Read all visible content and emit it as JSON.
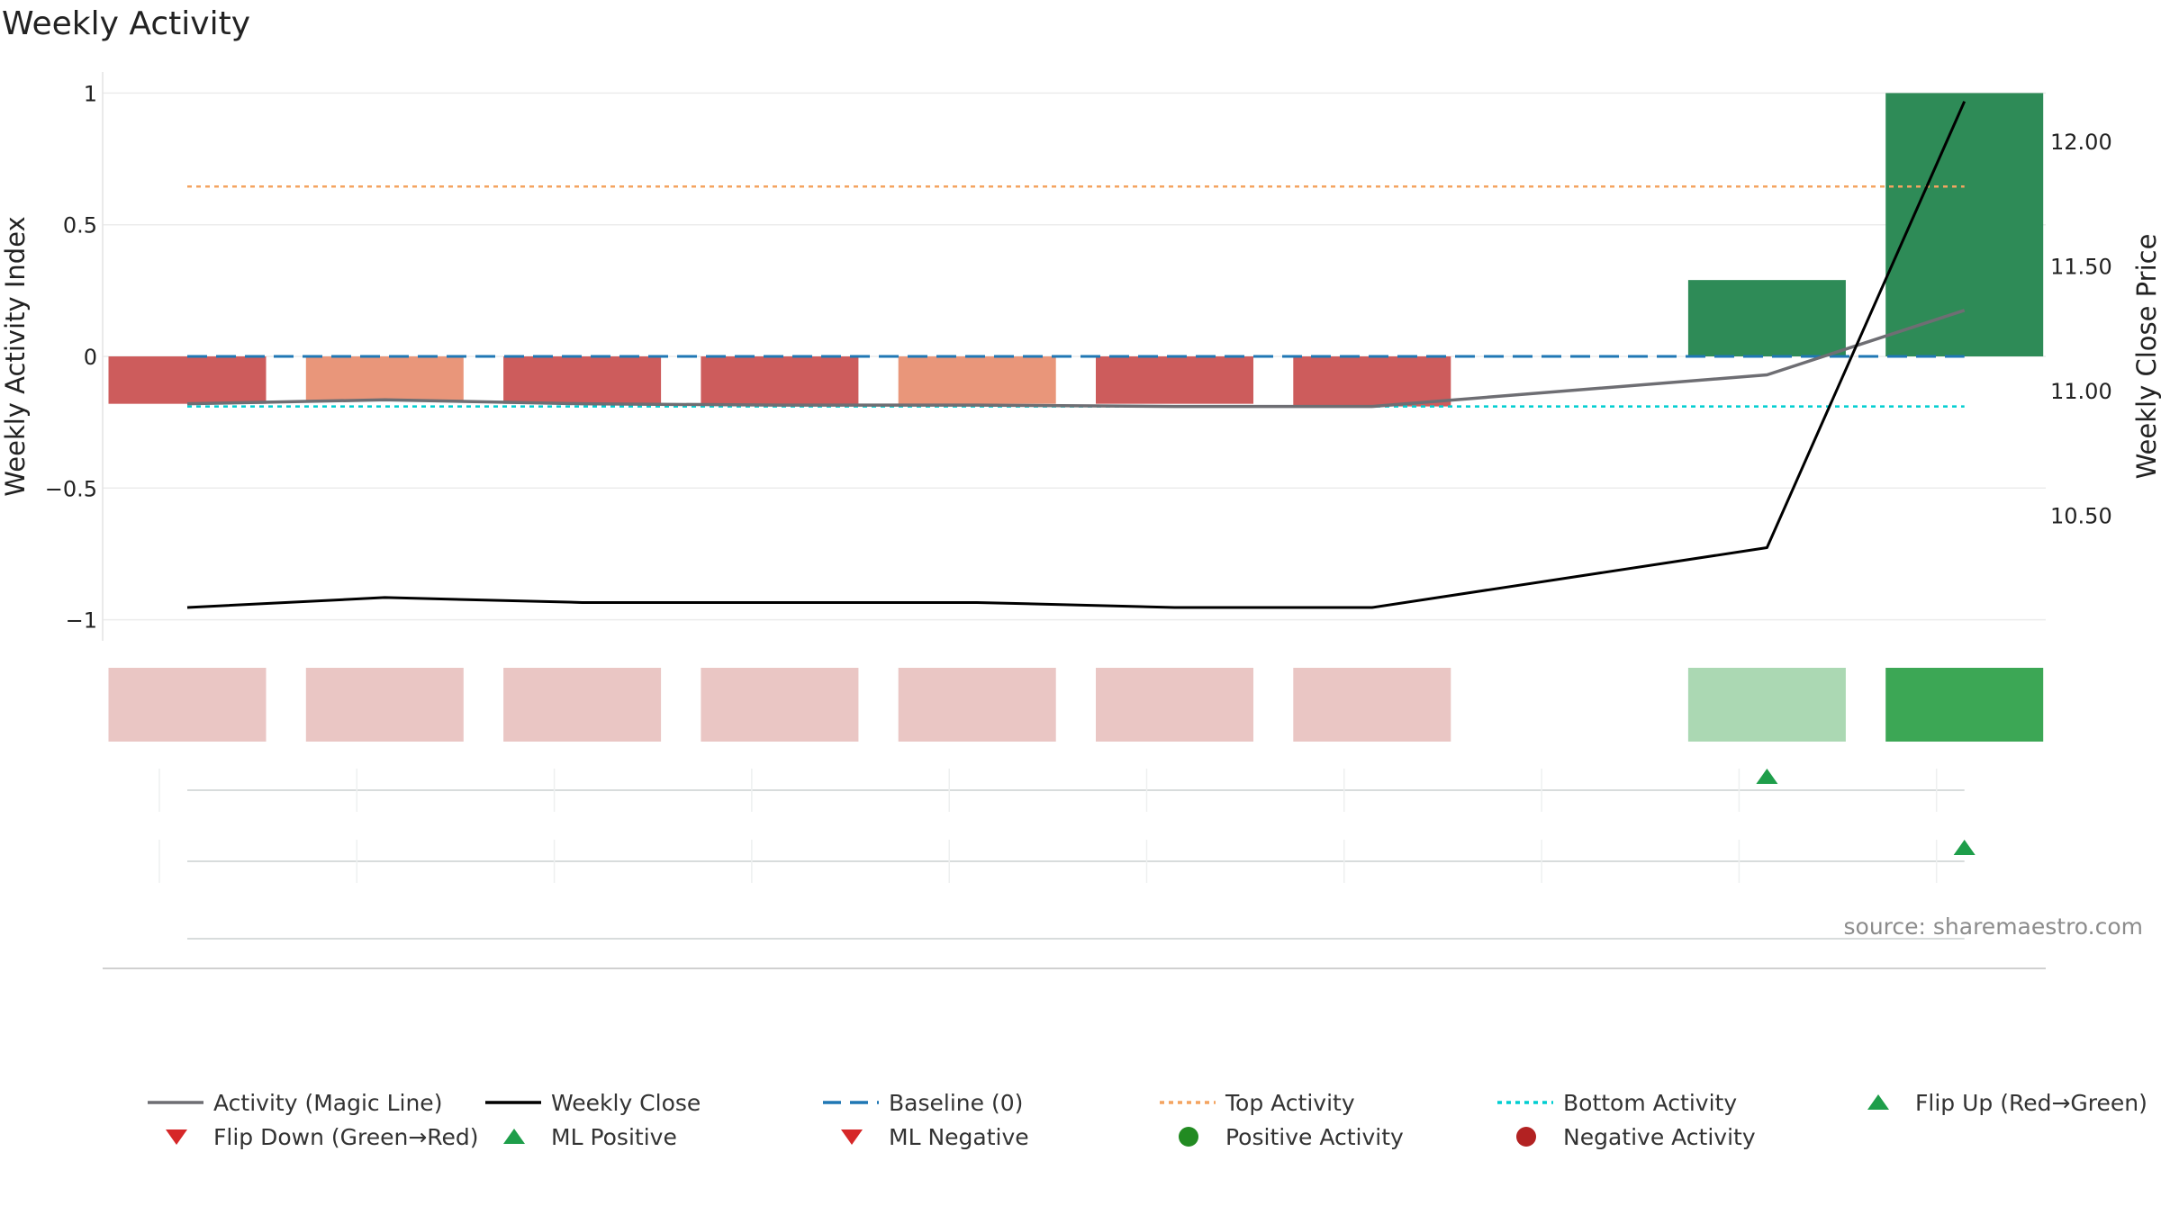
{
  "title": "Weekly Activity",
  "source": "source: sharemaestro.com",
  "chart_data": {
    "type": "bar",
    "title": "Weekly Activity",
    "n_weeks": 10,
    "left_axis": {
      "label": "Weekly Activity Index",
      "ylim": [
        -1.08,
        1.08
      ],
      "ticks": [
        1,
        0.5,
        0,
        -0.5,
        -1
      ],
      "tick_labels": [
        "1",
        "0.5",
        "0",
        "−0.5",
        "−1"
      ]
    },
    "right_axis": {
      "label": "Weekly Close Price",
      "ticks": [
        12.0,
        11.5,
        11.0,
        10.5
      ],
      "tick_labels": [
        "12.00",
        "11.50",
        "11.00",
        "10.50"
      ]
    },
    "grid": true,
    "activity_bars": [
      -0.18,
      -0.17,
      -0.18,
      -0.18,
      -0.18,
      -0.18,
      -0.19,
      null,
      0.29,
      1.0
    ],
    "bar_colors": [
      "#cd5c5c",
      "#e9967a",
      "#cd5c5c",
      "#cd5c5c",
      "#e9967a",
      "#cd5c5c",
      "#cd5c5c",
      null,
      "#2e8b57",
      "#2e8b57"
    ],
    "strip_colors": [
      "#eac6c4",
      "#eac6c4",
      "#eac6c4",
      "#eac6c4",
      "#eac6c4",
      "#eac6c4",
      "#eac6c4",
      null,
      "#abd8b3",
      "#3ca755"
    ],
    "series": [
      {
        "name": "Activity (Magic Line)",
        "axis": "left",
        "color": "#6e6e73",
        "values": [
          -0.18,
          -0.165,
          -0.18,
          -0.185,
          -0.185,
          -0.19,
          -0.19,
          null,
          -0.07,
          0.175
        ]
      },
      {
        "name": "Weekly Close",
        "axis": "right",
        "color": "#000000",
        "values": [
          10.13,
          10.17,
          10.15,
          10.15,
          10.15,
          10.13,
          10.13,
          null,
          10.37,
          12.16
        ]
      }
    ],
    "reference_lines": [
      {
        "name": "Baseline (0)",
        "value": 0,
        "color": "#1f77b4",
        "style": "dashed"
      },
      {
        "name": "Top Activity",
        "value": 0.645,
        "color": "#f4a460",
        "style": "dotted"
      },
      {
        "name": "Bottom Activity",
        "value": -0.19,
        "color": "#00ced1",
        "style": "dotted"
      }
    ],
    "flip_up_markers": [
      8
    ],
    "ml_positive_markers": [
      9
    ],
    "legend": {
      "placement": "bottom",
      "items": [
        {
          "label": "Activity (Magic Line)",
          "kind": "line",
          "color": "#6e6e73",
          "dash": "solid"
        },
        {
          "label": "Weekly Close",
          "kind": "line",
          "color": "#000000",
          "dash": "solid"
        },
        {
          "label": "Baseline (0)",
          "kind": "line",
          "color": "#1f77b4",
          "dash": "dashed"
        },
        {
          "label": "Top Activity",
          "kind": "line",
          "color": "#f4a460",
          "dash": "dotted"
        },
        {
          "label": "Bottom Activity",
          "kind": "line",
          "color": "#00ced1",
          "dash": "dotted"
        },
        {
          "label": "Flip Up (Red→Green)",
          "kind": "triangle-up",
          "color": "#1e9e4a"
        },
        {
          "label": "Flip Down (Green→Red)",
          "kind": "triangle-down",
          "color": "#d62728"
        },
        {
          "label": "ML Positive",
          "kind": "triangle-up",
          "color": "#1e9e4a"
        },
        {
          "label": "ML Negative",
          "kind": "triangle-down",
          "color": "#d62728"
        },
        {
          "label": "Positive Activity",
          "kind": "circle",
          "color": "#228b22"
        },
        {
          "label": "Negative Activity",
          "kind": "circle",
          "color": "#b22222"
        }
      ]
    }
  }
}
